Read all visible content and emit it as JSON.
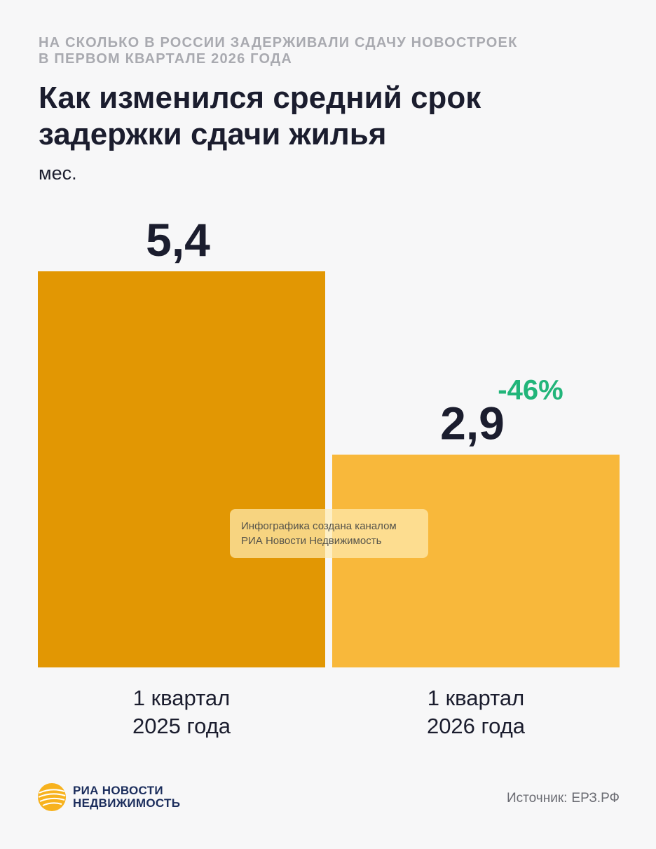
{
  "header": {
    "kicker_lines": [
      "НА СКОЛЬКО В РОССИИ ЗАДЕРЖИВАЛИ СДАЧУ НОВОСТРОЕК",
      "В ПЕРВОМ КВАРТАЛЕ 2026 ГОДА"
    ],
    "title_lines": [
      "Как изменился средний срок",
      "задержки сдачи жилья"
    ]
  },
  "chart_data": {
    "type": "bar",
    "categories": [
      [
        "1 квартал",
        "2025 года"
      ],
      [
        "1 квартал",
        "2026 года"
      ]
    ],
    "values": [
      5.4,
      2.9
    ],
    "value_labels": [
      "5,4",
      "2,9"
    ],
    "change_label": "-46%",
    "ylabel": "мес.",
    "ylim": [
      0,
      5.4
    ],
    "colors": [
      "#e29703",
      "#f8b83b"
    ],
    "change_color": "#22b57a",
    "label_color": "#1b1d2e",
    "grid": false,
    "legend": "none"
  },
  "watermark": {
    "lines": [
      "Инфографика создана каналом",
      "РИА Новости Недвижимость"
    ]
  },
  "footer": {
    "brand_lines": [
      "РИА НОВОСТИ",
      "НЕДВИЖИМОСТЬ"
    ],
    "logo_icon": "ria-sphere-logo-icon",
    "source_label": "Источник:",
    "source_value": "ЕРЗ.РФ"
  }
}
